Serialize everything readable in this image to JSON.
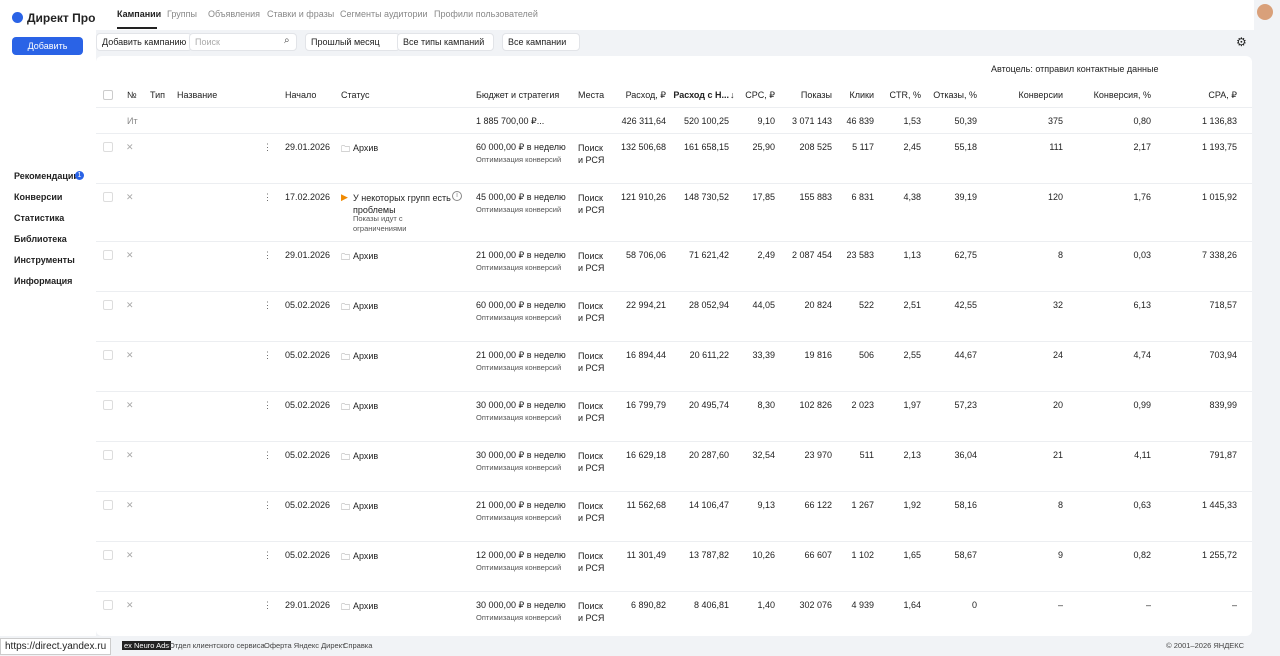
{
  "header": {
    "logo": "Директ Про",
    "tabs": [
      "Кампании",
      "Группы",
      "Объявления",
      "Ставки и фразы",
      "Сегменты аудитории",
      "Профили пользователей"
    ]
  },
  "sidebar": {
    "add_button": "Добавить",
    "menu": [
      "Рекомендации",
      "Конверсии",
      "Статистика",
      "Библиотека",
      "Инструменты",
      "Информация"
    ],
    "badge": "1"
  },
  "toolbar": {
    "add_campaign": "Добавить кампанию",
    "search": "Поиск",
    "filters": [
      "Прошлый месяц",
      "Все типы кампаний",
      "Все кампании"
    ]
  },
  "table": {
    "autogoal": "Автоцель: отправил контактные данные",
    "columns": [
      "№",
      "Тип",
      "Название",
      "Начало",
      "Статус",
      "Бюджет и стратегия",
      "Места",
      "Расход, ₽",
      "Расход с Н...",
      "CPC, ₽",
      "Показы",
      "Клики",
      "CTR, %",
      "Отказы, %",
      "Конверсии",
      "Конверсия, %",
      "CPA, ₽"
    ],
    "totals": {
      "label": "Ит",
      "budget": "1 885 700,00 ₽...",
      "values": [
        "426 311,64",
        "520 100,25",
        "9,10",
        "3 071 143",
        "46 839",
        "1,53",
        "50,39",
        "375",
        "0,80",
        "1 136,83"
      ]
    },
    "rows": [
      {
        "start": "29.01.2026",
        "status": "Архив",
        "budget": "60 000,00 ₽ в неделю",
        "strategy": "Оптимизация конверсий",
        "places": "Поиск и РСЯ",
        "values": [
          "132 506,68",
          "161 658,15",
          "25,90",
          "208 525",
          "5 117",
          "2,45",
          "55,18",
          "111",
          "2,17",
          "1 193,75"
        ]
      },
      {
        "start": "17.02.2026",
        "status": "У некоторых групп есть проблемы",
        "status_note": "Показы идут с ограничениями",
        "budget": "45 000,00 ₽ в неделю",
        "strategy": "Оптимизация конверсий",
        "places": "Поиск и РСЯ",
        "values": [
          "121 910,26",
          "148 730,52",
          "17,85",
          "155 883",
          "6 831",
          "4,38",
          "39,19",
          "120",
          "1,76",
          "1 015,92"
        ]
      },
      {
        "start": "29.01.2026",
        "status": "Архив",
        "budget": "21 000,00 ₽ в неделю",
        "strategy": "Оптимизация конверсий",
        "places": "Поиск и РСЯ",
        "values": [
          "58 706,06",
          "71 621,42",
          "2,49",
          "2 087 454",
          "23 583",
          "1,13",
          "62,75",
          "8",
          "0,03",
          "7 338,26"
        ]
      },
      {
        "start": "05.02.2026",
        "status": "Архив",
        "budget": "60 000,00 ₽ в неделю",
        "strategy": "Оптимизация конверсий",
        "places": "Поиск и РСЯ",
        "values": [
          "22 994,21",
          "28 052,94",
          "44,05",
          "20 824",
          "522",
          "2,51",
          "42,55",
          "32",
          "6,13",
          "718,57"
        ]
      },
      {
        "start": "05.02.2026",
        "status": "Архив",
        "budget": "21 000,00 ₽ в неделю",
        "strategy": "Оптимизация конверсий",
        "places": "Поиск и РСЯ",
        "values": [
          "16 894,44",
          "20 611,22",
          "33,39",
          "19 816",
          "506",
          "2,55",
          "44,67",
          "24",
          "4,74",
          "703,94"
        ]
      },
      {
        "start": "05.02.2026",
        "status": "Архив",
        "budget": "30 000,00 ₽ в неделю",
        "strategy": "Оптимизация конверсий",
        "places": "Поиск и РСЯ",
        "values": [
          "16 799,79",
          "20 495,74",
          "8,30",
          "102 826",
          "2 023",
          "1,97",
          "57,23",
          "20",
          "0,99",
          "839,99"
        ]
      },
      {
        "start": "05.02.2026",
        "status": "Архив",
        "budget": "30 000,00 ₽ в неделю",
        "strategy": "Оптимизация конверсий",
        "places": "Поиск и РСЯ",
        "values": [
          "16 629,18",
          "20 287,60",
          "32,54",
          "23 970",
          "511",
          "2,13",
          "36,04",
          "21",
          "4,11",
          "791,87"
        ]
      },
      {
        "start": "05.02.2026",
        "status": "Архив",
        "budget": "21 000,00 ₽ в неделю",
        "strategy": "Оптимизация конверсий",
        "places": "Поиск и РСЯ",
        "values": [
          "11 562,68",
          "14 106,47",
          "9,13",
          "66 122",
          "1 267",
          "1,92",
          "58,16",
          "8",
          "0,63",
          "1 445,33"
        ]
      },
      {
        "start": "05.02.2026",
        "status": "Архив",
        "budget": "12 000,00 ₽ в неделю",
        "strategy": "Оптимизация конверсий",
        "places": "Поиск и РСЯ",
        "values": [
          "11 301,49",
          "13 787,82",
          "10,26",
          "66 607",
          "1 102",
          "1,65",
          "58,67",
          "9",
          "0,82",
          "1 255,72"
        ]
      },
      {
        "start": "29.01.2026",
        "status": "Архив",
        "budget": "30 000,00 ₽ в неделю",
        "strategy": "Оптимизация конверсий",
        "places": "Поиск и РСЯ",
        "values": [
          "6 890,82",
          "8 406,81",
          "1,40",
          "302 076",
          "4 939",
          "1,64",
          "0",
          "–",
          "–",
          "–"
        ]
      }
    ]
  },
  "footer": {
    "url": "https://direct.yandex.ru",
    "links": [
      "ex Neuro Ads",
      "Отдел клиентского сервиса",
      "Оферта Яндекс Директ",
      "Справка"
    ],
    "copyright": "© 2001–2026 ЯНДЕКС"
  }
}
